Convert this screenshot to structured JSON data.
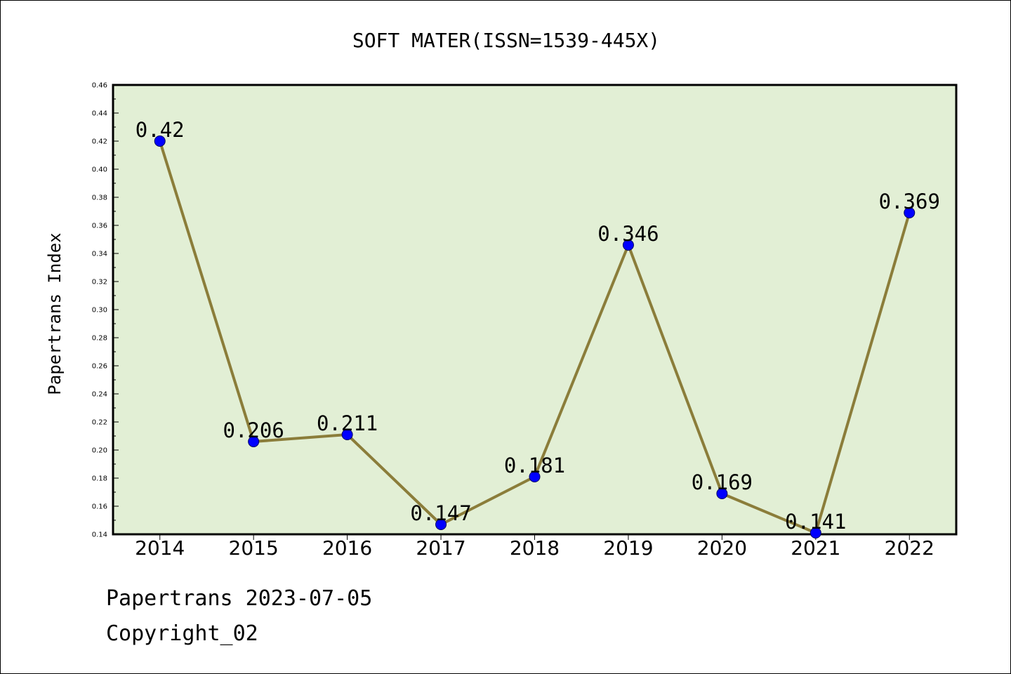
{
  "chart_data": {
    "type": "line",
    "title": "SOFT MATER(ISSN=1539-445X)",
    "xlabel": "",
    "ylabel": "Papertrans Index",
    "categories": [
      "2014",
      "2015",
      "2016",
      "2017",
      "2018",
      "2019",
      "2020",
      "2021",
      "2022"
    ],
    "series": [
      {
        "values": [
          0.42,
          0.206,
          0.211,
          0.147,
          0.181,
          0.346,
          0.169,
          0.141,
          0.369
        ],
        "labels": [
          "0.42",
          "0.206",
          "0.211",
          "0.147",
          "0.181",
          "0.346",
          "0.169",
          "0.141",
          "0.369"
        ],
        "line_color": "#8b7d3a",
        "marker_color": "#0000ff"
      }
    ],
    "ylim": [
      0.14,
      0.46
    ],
    "yticks": [
      "0.14",
      "0.16",
      "0.18",
      "0.20",
      "0.22",
      "0.24",
      "0.26",
      "0.28",
      "0.30",
      "0.32",
      "0.34",
      "0.36",
      "0.38",
      "0.40",
      "0.42",
      "0.44",
      "0.46"
    ],
    "grid": false,
    "legend": "none",
    "plot_background": "#e2efd5"
  },
  "footer": {
    "date_line": "Papertrans 2023-07-05",
    "copyright_line": "Copyright_02"
  }
}
